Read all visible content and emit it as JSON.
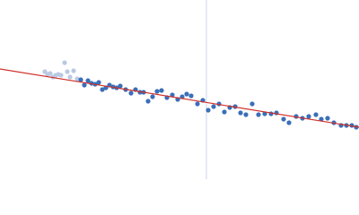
{
  "chart_data": {
    "type": "scatter",
    "xlim": [
      0,
      400
    ],
    "ylim": [
      0,
      200
    ],
    "vline": 230,
    "vline_color": "#c8d4e8",
    "series": [
      {
        "color": "#b9c9e3",
        "x": [
          50,
          53,
          56,
          59,
          62,
          65,
          68,
          72,
          75,
          78,
          82,
          86
        ],
        "y": [
          120,
          117,
          118,
          114,
          116,
          117,
          116,
          130,
          120,
          114,
          121,
          112
        ]
      },
      {
        "color": "#3a6fb8",
        "x": [
          90,
          94,
          98,
          102,
          106,
          110,
          114,
          118,
          122,
          126,
          130,
          134,
          140,
          146,
          151,
          156,
          160,
          165,
          170,
          175,
          180,
          186,
          192,
          198,
          203,
          208,
          213,
          220,
          226,
          232,
          238,
          244,
          250,
          256,
          262,
          268,
          274,
          281,
          288,
          295,
          302,
          308,
          316,
          322,
          330,
          337,
          344,
          352,
          358,
          365,
          372,
          380,
          386,
          392,
          397
        ],
        "y": [
          111,
          105,
          110,
          107,
          106,
          108,
          100,
          102,
          105,
          103,
          102,
          104,
          100,
          96,
          100,
          97,
          97,
          87,
          92,
          98,
          99,
          91,
          94,
          89,
          92,
          95,
          93,
          84,
          88,
          77,
          81,
          84,
          75,
          80,
          81,
          74,
          72,
          84,
          72,
          73,
          73,
          74,
          67,
          63,
          70,
          68,
          70,
          72,
          67,
          68,
          63,
          60,
          60,
          60,
          58
        ]
      }
    ],
    "fit": {
      "color": "#d0302a",
      "x": [
        0,
        400
      ],
      "y": [
        123,
        58
      ]
    }
  }
}
